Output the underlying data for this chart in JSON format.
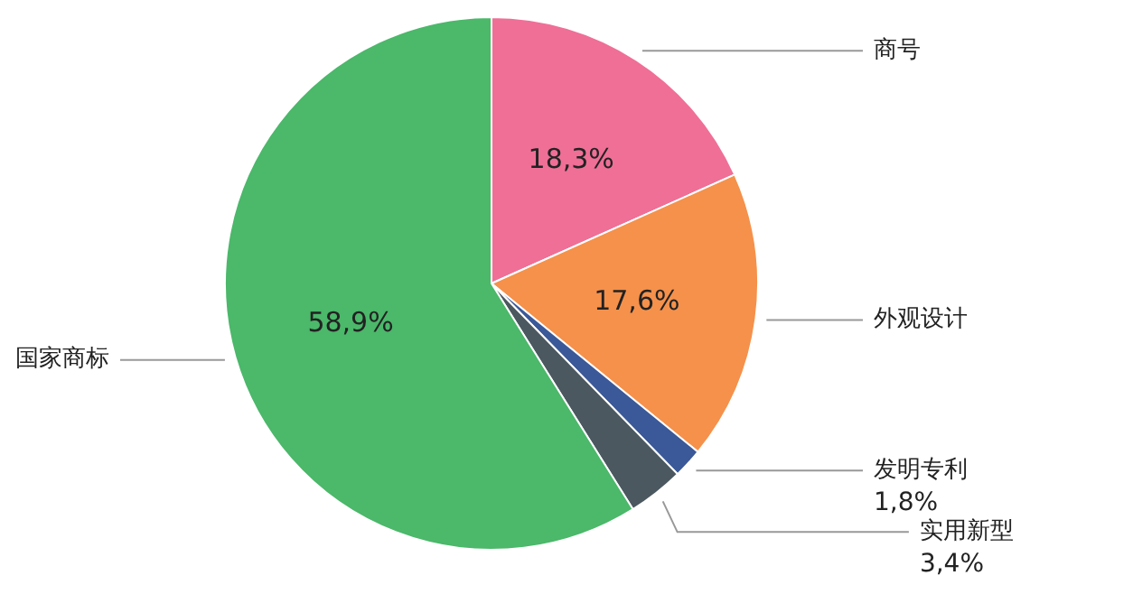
{
  "chart_data": {
    "type": "pie",
    "categories": [
      "商号",
      "外观设计",
      "发明专利",
      "实用新型",
      "国家商标"
    ],
    "values": [
      18.3,
      17.6,
      1.8,
      3.4,
      58.9
    ],
    "colors": [
      "#ef6f97",
      "#f5914b",
      "#3b5998",
      "#4b5860",
      "#4bb86a"
    ],
    "value_labels": [
      "18,3%",
      "17,6%",
      "1,8%",
      "3,4%",
      "58,9%"
    ]
  }
}
